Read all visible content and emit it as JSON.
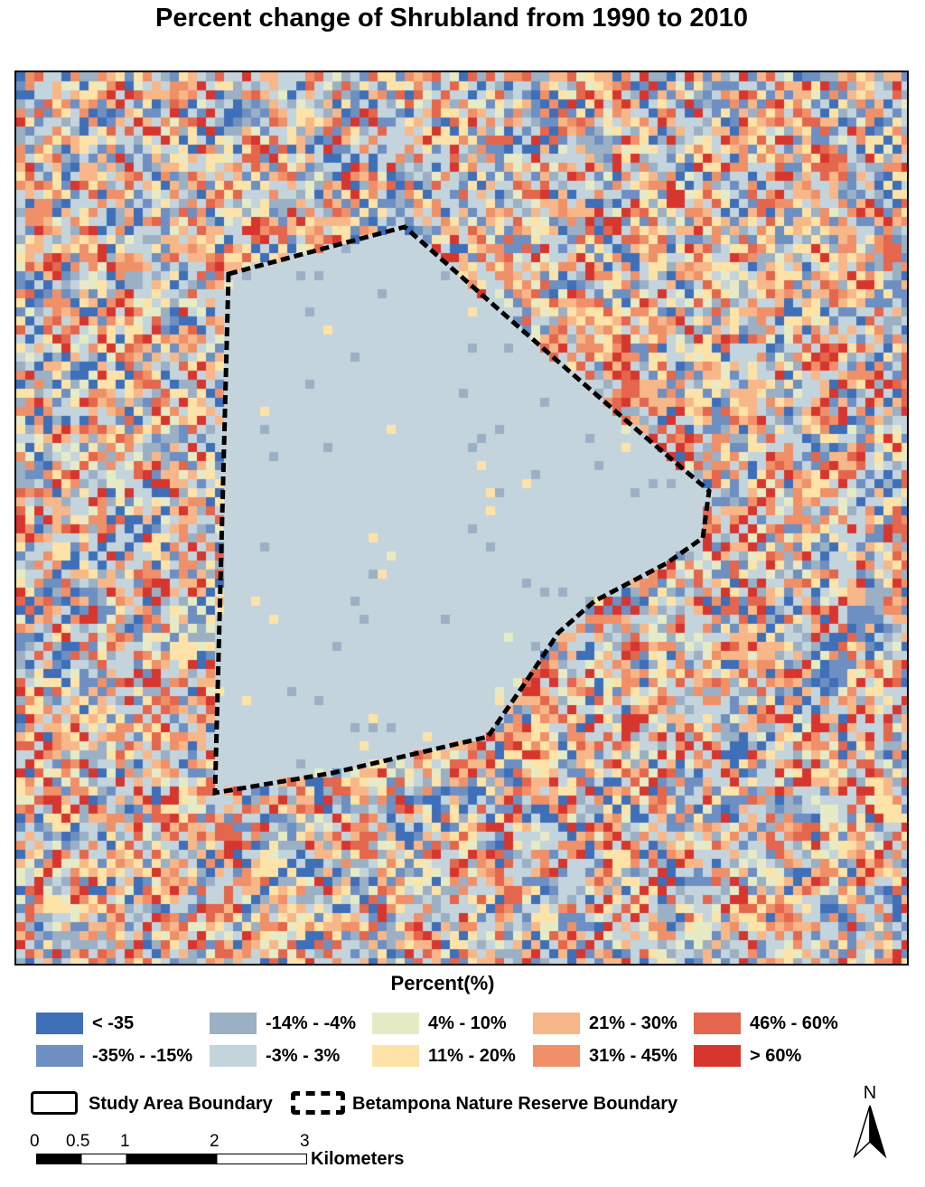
{
  "title": "Percent change of Shrubland from 1990 to 2010",
  "legend": {
    "title": "Percent(%)",
    "classes": [
      {
        "label": "< -35",
        "color": "#3e6fb8"
      },
      {
        "label": "-35% - -15%",
        "color": "#6d8fc2"
      },
      {
        "label": "-14% - -4%",
        "color": "#9bb0c4"
      },
      {
        "label": "-3% - 3%",
        "color": "#c4d4dc"
      },
      {
        "label": "4% - 10%",
        "color": "#e6ebc6"
      },
      {
        "label": "11% - 20%",
        "color": "#fde3a8"
      },
      {
        "label": "21% - 30%",
        "color": "#f7b789"
      },
      {
        "label": "31% - 45%",
        "color": "#ef9069"
      },
      {
        "label": "46% - 60%",
        "color": "#e3664d"
      },
      {
        "label": "> 60%",
        "color": "#d6362e"
      }
    ]
  },
  "boundaries": {
    "study_area": "Study Area Boundary",
    "reserve": "Betampona Nature Reserve Boundary"
  },
  "scale": {
    "ticks": [
      "0",
      "0.5",
      "1",
      "2",
      "3"
    ],
    "unit": "Kilometers"
  },
  "north_label": "N"
}
